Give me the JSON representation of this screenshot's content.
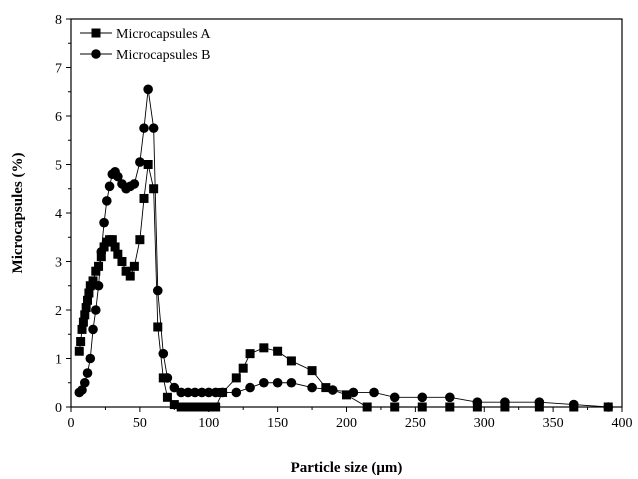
{
  "chart_data": {
    "type": "line",
    "title": "",
    "xlabel": "Particle size (μm)",
    "ylabel": "Microcapsules (%)",
    "xlim": [
      0,
      400
    ],
    "ylim": [
      0,
      8
    ],
    "xticks": [
      0,
      50,
      100,
      150,
      200,
      250,
      300,
      350,
      400
    ],
    "yticks": [
      0,
      1,
      2,
      3,
      4,
      5,
      6,
      7,
      8
    ],
    "grid": false,
    "legend_position": "top-left",
    "series": [
      {
        "name": "Microcapsules A",
        "marker": "square",
        "color": "#000000",
        "x": [
          6,
          7,
          8,
          9,
          10,
          11,
          12,
          13,
          14,
          16,
          18,
          20,
          22,
          24,
          26,
          28,
          30,
          32,
          34,
          37,
          40,
          43,
          46,
          50,
          53,
          56,
          60,
          63,
          67,
          70,
          75,
          80,
          85,
          90,
          95,
          100,
          105,
          110,
          120,
          125,
          130,
          140,
          150,
          160,
          175,
          185,
          200,
          215,
          235,
          255,
          275,
          295,
          315,
          340,
          365,
          390
        ],
        "y": [
          1.15,
          1.35,
          1.6,
          1.75,
          1.9,
          2.05,
          2.2,
          2.35,
          2.5,
          2.6,
          2.8,
          2.9,
          3.1,
          3.3,
          3.4,
          3.45,
          3.45,
          3.3,
          3.15,
          3.0,
          2.8,
          2.7,
          2.9,
          3.45,
          4.3,
          5.0,
          4.5,
          1.65,
          0.6,
          0.2,
          0.05,
          0.0,
          0.0,
          0.0,
          0.0,
          0.0,
          0.0,
          0.3,
          0.6,
          0.8,
          1.1,
          1.22,
          1.15,
          0.95,
          0.75,
          0.4,
          0.25,
          0.0,
          0.0,
          0.0,
          0.0,
          0.0,
          0.0,
          0.0,
          0.0,
          0.0
        ]
      },
      {
        "name": "Microcapsules B",
        "marker": "circle",
        "color": "#000000",
        "x": [
          6,
          8,
          10,
          12,
          14,
          16,
          18,
          20,
          22,
          24,
          26,
          28,
          30,
          32,
          34,
          37,
          40,
          43,
          46,
          50,
          53,
          56,
          60,
          63,
          67,
          70,
          75,
          80,
          85,
          90,
          95,
          100,
          105,
          110,
          120,
          130,
          140,
          150,
          160,
          175,
          190,
          205,
          220,
          235,
          255,
          275,
          295,
          315,
          340,
          365,
          390
        ],
        "y": [
          0.3,
          0.35,
          0.5,
          0.7,
          1.0,
          1.6,
          2.0,
          2.5,
          3.2,
          3.8,
          4.25,
          4.55,
          4.8,
          4.85,
          4.75,
          4.6,
          4.5,
          4.55,
          4.6,
          5.05,
          5.75,
          6.55,
          5.75,
          2.4,
          1.1,
          0.6,
          0.4,
          0.3,
          0.3,
          0.3,
          0.3,
          0.3,
          0.3,
          0.3,
          0.3,
          0.4,
          0.5,
          0.5,
          0.5,
          0.4,
          0.35,
          0.3,
          0.3,
          0.2,
          0.2,
          0.2,
          0.1,
          0.1,
          0.1,
          0.05,
          0.0
        ]
      }
    ]
  }
}
